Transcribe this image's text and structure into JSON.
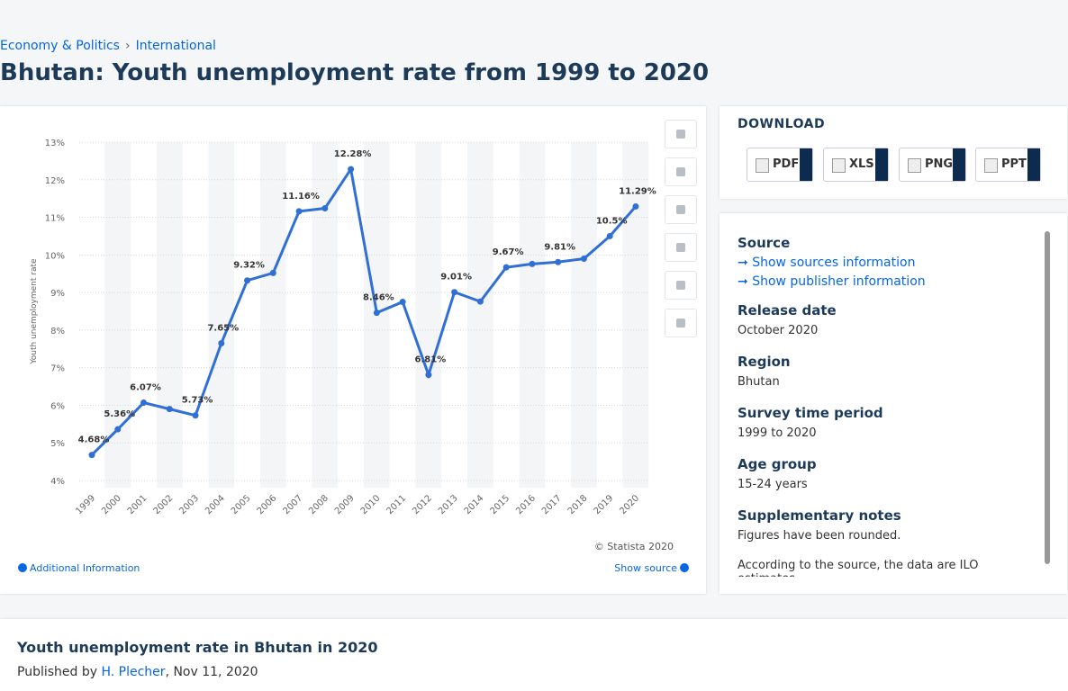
{
  "breadcrumbs": [
    "Economy & Politics",
    "International"
  ],
  "title": "Bhutan: Youth unemployment rate from 1999 to 2020",
  "chart_data": {
    "type": "line",
    "y_label": "Youth unemployment rate",
    "categories": [
      "1999",
      "2000",
      "2001",
      "2002",
      "2003",
      "2004",
      "2005",
      "2006",
      "2007",
      "2008",
      "2009",
      "2010",
      "2011",
      "2012",
      "2013",
      "2014",
      "2015",
      "2016",
      "2017",
      "2018",
      "2019",
      "2020"
    ],
    "values": [
      4.68,
      5.36,
      6.07,
      5.9,
      5.73,
      7.65,
      9.32,
      9.52,
      11.16,
      11.24,
      12.28,
      8.46,
      8.75,
      6.81,
      9.01,
      8.76,
      9.67,
      9.76,
      9.81,
      9.9,
      10.5,
      11.29
    ],
    "value_labels": [
      "4.68%",
      "5.36%",
      "6.07%",
      null,
      "5.73%",
      "7.65%",
      "9.32%",
      null,
      "11.16%",
      null,
      "12.28%",
      "8.46%",
      null,
      "6.81%",
      "9.01%",
      null,
      "9.67%",
      null,
      "9.81%",
      null,
      "10.5%",
      "11.29%"
    ],
    "color": "#2f6fd6",
    "ylim": [
      4,
      13
    ],
    "yticks": [
      {
        "value": 4,
        "label": "4%"
      },
      {
        "value": 5,
        "label": "5%"
      },
      {
        "value": 6,
        "label": "6%"
      },
      {
        "value": 7,
        "label": "7%"
      },
      {
        "value": 8,
        "label": "8%"
      },
      {
        "value": 9,
        "label": "9%"
      },
      {
        "value": 10,
        "label": "10%"
      },
      {
        "value": 11,
        "label": "11%"
      },
      {
        "value": 12,
        "label": "12%"
      },
      {
        "value": 13,
        "label": "13%"
      }
    ],
    "grid": true,
    "credit": "© Statista 2020",
    "additional": "Additional Information",
    "show_source": "Show source"
  },
  "download": {
    "title": "DOWNLOAD",
    "buttons": [
      "PDF",
      "XLS",
      "PNG",
      "PPT"
    ]
  },
  "details": {
    "source": "Source",
    "links": [
      "Show sources information",
      "Show publisher information"
    ],
    "items": [
      {
        "label": "Release date",
        "value": "October 2020"
      },
      {
        "label": "Region",
        "value": "Bhutan"
      },
      {
        "label": "Survey time period",
        "value": "1999 to 2020"
      },
      {
        "label": "Age group",
        "value": "15-24 years"
      },
      {
        "label": "Supplementary notes",
        "value": "Figures have been rounded."
      }
    ],
    "note": "According to the source, the data are ILO estimates."
  },
  "footer": {
    "title": "Youth unemployment rate in Bhutan in 2020",
    "prefix": "Published by",
    "author": "H. Plecher",
    "date": ", Nov 11, 2020"
  }
}
